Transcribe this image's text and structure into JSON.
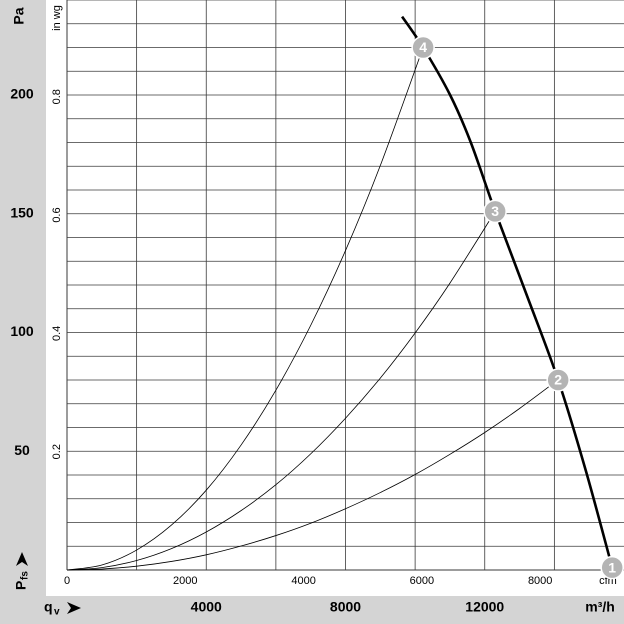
{
  "chart_data": {
    "type": "line",
    "y_label": "Pa",
    "y2_label": "in wg",
    "x_label": "m³/h",
    "x2_label": "cfm",
    "y_symbol": "P",
    "y_symbol_sub": "fs",
    "x_symbol": "q",
    "x_symbol_sub": "v",
    "xlim": [
      0,
      16000
    ],
    "ylim": [
      0,
      240
    ],
    "xticks": [
      4000,
      8000,
      12000
    ],
    "yticks": [
      50,
      100,
      150,
      200
    ],
    "x2lim": [
      0,
      9417
    ],
    "x2ticks": [
      0,
      2000,
      4000,
      6000,
      8000
    ],
    "y2lim": [
      0,
      0.9635
    ],
    "y2ticks": [
      0.2,
      0.4,
      0.6,
      0.8
    ],
    "xgrid": [
      2000,
      4000,
      6000,
      8000,
      10000,
      12000,
      14000
    ],
    "ygrid": [
      10,
      20,
      30,
      40,
      50,
      60,
      70,
      80,
      90,
      100,
      110,
      120,
      130,
      140,
      150,
      160,
      170,
      180,
      190,
      200,
      210,
      220,
      230,
      240
    ],
    "series": [
      {
        "color": "#000000",
        "x": [
          9626,
          10230,
          11005,
          11600,
          12299,
          13200,
          14109,
          14900,
          15661
        ],
        "values": [
          233,
          220,
          200,
          180,
          151,
          116,
          80,
          42,
          1
        ]
      },
      {
        "color": "#000000",
        "x": [
          0,
          1000,
          2000,
          3000,
          4000,
          5000,
          6000,
          7000,
          8000,
          9000,
          10230
        ],
        "values": [
          0,
          2.1,
          8.4,
          18.9,
          33.6,
          52.6,
          75.7,
          103.0,
          134.5,
          170.3,
          220
        ]
      },
      {
        "color": "#000000",
        "x": [
          0,
          1000,
          2000,
          3000,
          4000,
          5000,
          6000,
          7000,
          8000,
          9000,
          10000,
          11000,
          12300
        ],
        "values": [
          0,
          1.0,
          4.0,
          9.0,
          16.0,
          25.0,
          35.9,
          48.9,
          63.9,
          80.8,
          99.8,
          120.8,
          151
        ]
      },
      {
        "color": "#000000",
        "x": [
          0,
          1000,
          2000,
          3000,
          4000,
          5000,
          6000,
          7000,
          8000,
          9000,
          10000,
          11000,
          12000,
          13000,
          14100
        ],
        "values": [
          0,
          0.4,
          1.6,
          3.6,
          6.4,
          10.1,
          14.5,
          19.7,
          25.8,
          32.6,
          40.2,
          48.7,
          57.9,
          68.0,
          80
        ]
      }
    ],
    "points": [
      {
        "label": "1",
        "x": 15661,
        "y": 1
      },
      {
        "label": "2",
        "x": 14109,
        "y": 80
      },
      {
        "label": "3",
        "x": 12299,
        "y": 151
      },
      {
        "label": "4",
        "x": 10230,
        "y": 220
      }
    ],
    "marker_color": "#b4b4b4"
  }
}
